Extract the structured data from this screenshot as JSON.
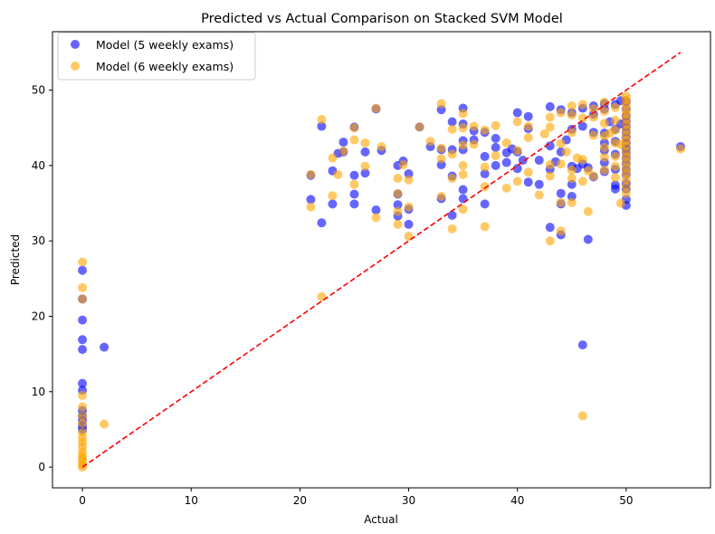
{
  "chart_data": {
    "type": "scatter",
    "title": "Predicted vs Actual Comparison on Stacked SVM Model",
    "xlabel": "Actual",
    "ylabel": "Predicted",
    "xlim": [
      -2.75,
      57.75
    ],
    "ylim": [
      -2.75,
      57.75
    ],
    "xticks": [
      0,
      10,
      20,
      30,
      40,
      50
    ],
    "yticks": [
      0,
      10,
      20,
      30,
      40,
      50
    ],
    "grid": false,
    "legend_position": "top-left",
    "reference_line": {
      "from": [
        0,
        0
      ],
      "to": [
        55,
        55
      ],
      "color": "#ff0000",
      "style": "dashed"
    },
    "series": [
      {
        "name": "Model (5 weekly exams)",
        "color": "#0000ff",
        "points": [
          [
            0,
            26.1
          ],
          [
            0,
            22.3
          ],
          [
            0,
            19.5
          ],
          [
            0,
            16.9
          ],
          [
            0,
            15.6
          ],
          [
            0,
            11.1
          ],
          [
            0,
            10.2
          ],
          [
            0,
            7.5
          ],
          [
            0,
            6.8
          ],
          [
            0,
            6.2
          ],
          [
            0,
            5.5
          ],
          [
            0,
            5.0
          ],
          [
            2,
            15.9
          ],
          [
            21,
            38.7
          ],
          [
            21,
            35.5
          ],
          [
            22,
            45.2
          ],
          [
            22,
            32.4
          ],
          [
            23,
            39.3
          ],
          [
            23,
            34.9
          ],
          [
            23.5,
            41.6
          ],
          [
            24,
            43.1
          ],
          [
            24,
            41.8
          ],
          [
            25,
            45.1
          ],
          [
            25,
            38.7
          ],
          [
            25,
            36.2
          ],
          [
            25,
            34.9
          ],
          [
            26,
            41.8
          ],
          [
            26,
            39.0
          ],
          [
            27,
            47.5
          ],
          [
            27,
            34.1
          ],
          [
            27.5,
            42.0
          ],
          [
            29,
            40.0
          ],
          [
            29,
            36.2
          ],
          [
            29,
            34.8
          ],
          [
            29,
            33.3
          ],
          [
            29.5,
            40.6
          ],
          [
            30,
            38.9
          ],
          [
            30,
            34.2
          ],
          [
            30,
            32.2
          ],
          [
            31,
            45.1
          ],
          [
            32,
            42.5
          ],
          [
            33,
            47.4
          ],
          [
            33,
            42.1
          ],
          [
            33,
            40.1
          ],
          [
            33,
            35.6
          ],
          [
            34,
            45.8
          ],
          [
            34,
            42.1
          ],
          [
            34,
            38.6
          ],
          [
            34,
            33.4
          ],
          [
            35,
            47.6
          ],
          [
            35,
            45.5
          ],
          [
            35,
            43.3
          ],
          [
            35,
            42.1
          ],
          [
            35,
            36.8
          ],
          [
            35,
            35.6
          ],
          [
            36,
            44.6
          ],
          [
            36,
            43.4
          ],
          [
            37,
            44.4
          ],
          [
            37,
            41.2
          ],
          [
            37,
            38.9
          ],
          [
            37,
            34.9
          ],
          [
            38,
            43.6
          ],
          [
            38,
            42.4
          ],
          [
            38,
            40.0
          ],
          [
            39,
            41.7
          ],
          [
            39,
            40.4
          ],
          [
            39.5,
            42.2
          ],
          [
            40,
            47.0
          ],
          [
            40,
            41.8
          ],
          [
            40,
            39.6
          ],
          [
            40.5,
            40.7
          ],
          [
            41,
            46.5
          ],
          [
            41,
            44.9
          ],
          [
            41,
            37.8
          ],
          [
            42,
            40.7
          ],
          [
            42,
            37.5
          ],
          [
            43,
            47.8
          ],
          [
            43,
            42.6
          ],
          [
            43,
            39.5
          ],
          [
            43,
            31.8
          ],
          [
            43.5,
            40.5
          ],
          [
            44,
            47.4
          ],
          [
            44,
            41.8
          ],
          [
            44,
            36.3
          ],
          [
            44,
            34.9
          ],
          [
            44,
            30.8
          ],
          [
            44.5,
            43.4
          ],
          [
            45,
            47.0
          ],
          [
            45,
            44.8
          ],
          [
            45,
            39.9
          ],
          [
            45,
            37.5
          ],
          [
            45,
            35.9
          ],
          [
            45.5,
            39.6
          ],
          [
            46,
            47.6
          ],
          [
            46,
            45.2
          ],
          [
            46,
            40.2
          ],
          [
            46,
            16.2
          ],
          [
            46.5,
            39.7
          ],
          [
            46.5,
            30.2
          ],
          [
            47,
            47.9
          ],
          [
            47,
            46.8
          ],
          [
            47,
            44.4
          ],
          [
            47,
            38.5
          ],
          [
            48,
            48.2
          ],
          [
            48,
            47.5
          ],
          [
            48,
            44.3
          ],
          [
            48,
            43.0
          ],
          [
            48,
            42.0
          ],
          [
            48,
            40.4
          ],
          [
            48,
            39.2
          ],
          [
            48.5,
            45.8
          ],
          [
            49,
            48.1
          ],
          [
            49,
            44.8
          ],
          [
            49,
            43.2
          ],
          [
            49,
            41.5
          ],
          [
            49,
            39.5
          ],
          [
            49,
            37.4
          ],
          [
            49,
            36.9
          ],
          [
            49.5,
            48.6
          ],
          [
            49.5,
            45.5
          ],
          [
            50,
            48.5
          ],
          [
            50,
            47.5
          ],
          [
            50,
            46.6
          ],
          [
            50,
            45.9
          ],
          [
            50,
            45.2
          ],
          [
            50,
            44.5
          ],
          [
            50,
            43.8
          ],
          [
            50,
            43.0
          ],
          [
            50,
            42.3
          ],
          [
            50,
            41.7
          ],
          [
            50,
            41.0
          ],
          [
            50,
            40.3
          ],
          [
            50,
            39.5
          ],
          [
            50,
            38.8
          ],
          [
            50,
            37.6
          ],
          [
            50,
            36.9
          ],
          [
            50,
            35.5
          ],
          [
            50,
            34.7
          ],
          [
            55,
            42.5
          ]
        ]
      },
      {
        "name": "Model (6 weekly exams)",
        "color": "#ffa500",
        "points": [
          [
            0,
            27.2
          ],
          [
            0,
            23.8
          ],
          [
            0,
            22.3
          ],
          [
            0,
            9.5
          ],
          [
            0,
            8.0
          ],
          [
            0,
            6.8
          ],
          [
            0,
            5.8
          ],
          [
            0,
            4.6
          ],
          [
            0,
            3.9
          ],
          [
            0,
            3.3
          ],
          [
            0,
            2.7
          ],
          [
            0,
            2.0
          ],
          [
            0,
            1.5
          ],
          [
            0,
            1.1
          ],
          [
            0,
            0.7
          ],
          [
            0,
            0.3
          ],
          [
            0,
            0.0
          ],
          [
            2,
            5.7
          ],
          [
            21,
            38.8
          ],
          [
            21,
            34.5
          ],
          [
            22,
            46.1
          ],
          [
            22,
            22.6
          ],
          [
            23,
            41.0
          ],
          [
            23,
            36.0
          ],
          [
            23.5,
            38.8
          ],
          [
            24,
            41.9
          ],
          [
            25,
            45.0
          ],
          [
            25,
            43.4
          ],
          [
            25,
            37.5
          ],
          [
            26,
            43.0
          ],
          [
            26,
            39.9
          ],
          [
            27,
            47.6
          ],
          [
            27,
            33.1
          ],
          [
            27.5,
            42.5
          ],
          [
            29,
            38.3
          ],
          [
            29,
            36.3
          ],
          [
            29,
            33.9
          ],
          [
            29,
            32.2
          ],
          [
            29.5,
            40.1
          ],
          [
            30,
            38.1
          ],
          [
            30,
            34.5
          ],
          [
            30,
            30.6
          ],
          [
            31,
            45.1
          ],
          [
            32,
            43.2
          ],
          [
            33,
            48.2
          ],
          [
            33,
            42.3
          ],
          [
            33,
            40.9
          ],
          [
            33,
            35.9
          ],
          [
            34,
            44.8
          ],
          [
            34,
            41.5
          ],
          [
            34,
            38.3
          ],
          [
            34,
            31.6
          ],
          [
            35,
            46.9
          ],
          [
            35,
            45.0
          ],
          [
            35,
            42.7
          ],
          [
            35,
            40.0
          ],
          [
            35,
            38.8
          ],
          [
            35,
            34.2
          ],
          [
            36,
            45.2
          ],
          [
            36,
            42.8
          ],
          [
            37,
            44.7
          ],
          [
            37,
            39.8
          ],
          [
            37,
            37.2
          ],
          [
            37,
            31.9
          ],
          [
            38,
            45.3
          ],
          [
            38,
            41.3
          ],
          [
            39,
            43.0
          ],
          [
            39,
            37.0
          ],
          [
            40,
            45.8
          ],
          [
            40,
            42.0
          ],
          [
            40,
            37.9
          ],
          [
            41,
            45.2
          ],
          [
            41,
            43.7
          ],
          [
            41,
            39.1
          ],
          [
            42,
            36.1
          ],
          [
            42.5,
            44.2
          ],
          [
            43,
            46.4
          ],
          [
            43,
            45.1
          ],
          [
            43,
            40.1
          ],
          [
            43,
            38.6
          ],
          [
            43,
            30.0
          ],
          [
            44,
            47.0
          ],
          [
            44,
            42.9
          ],
          [
            44,
            40.2
          ],
          [
            44,
            35.1
          ],
          [
            44,
            31.3
          ],
          [
            44.5,
            41.8
          ],
          [
            45,
            47.9
          ],
          [
            45,
            46.7
          ],
          [
            45,
            44.4
          ],
          [
            45,
            39.4
          ],
          [
            45,
            38.3
          ],
          [
            45,
            35.1
          ],
          [
            45.5,
            41.0
          ],
          [
            46,
            48.1
          ],
          [
            46,
            46.3
          ],
          [
            46,
            40.8
          ],
          [
            46,
            37.9
          ],
          [
            46,
            6.8
          ],
          [
            46.5,
            39.3
          ],
          [
            46.5,
            33.9
          ],
          [
            47,
            47.5
          ],
          [
            47,
            46.4
          ],
          [
            47,
            44.0
          ],
          [
            47,
            38.6
          ],
          [
            48,
            48.4
          ],
          [
            48,
            47.2
          ],
          [
            48,
            45.6
          ],
          [
            48,
            43.9
          ],
          [
            48,
            42.4
          ],
          [
            48,
            41.1
          ],
          [
            48,
            39.4
          ],
          [
            48.5,
            44.3
          ],
          [
            49,
            47.7
          ],
          [
            49,
            46.0
          ],
          [
            49,
            44.7
          ],
          [
            49,
            43.0
          ],
          [
            49,
            41.2
          ],
          [
            49,
            39.9
          ],
          [
            49,
            38.4
          ],
          [
            49.5,
            42.8
          ],
          [
            49.5,
            35.0
          ],
          [
            50,
            49.2
          ],
          [
            50,
            48.7
          ],
          [
            50,
            48.1
          ],
          [
            50,
            47.4
          ],
          [
            50,
            46.8
          ],
          [
            50,
            46.1
          ],
          [
            50,
            45.4
          ],
          [
            50,
            44.7
          ],
          [
            50,
            44.0
          ],
          [
            50,
            43.3
          ],
          [
            50,
            42.6
          ],
          [
            50,
            41.8
          ],
          [
            50,
            41.1
          ],
          [
            50,
            40.4
          ],
          [
            50,
            39.6
          ],
          [
            50,
            38.9
          ],
          [
            50,
            38.1
          ],
          [
            50,
            37.2
          ],
          [
            50,
            36.3
          ],
          [
            55,
            42.2
          ]
        ]
      }
    ]
  }
}
